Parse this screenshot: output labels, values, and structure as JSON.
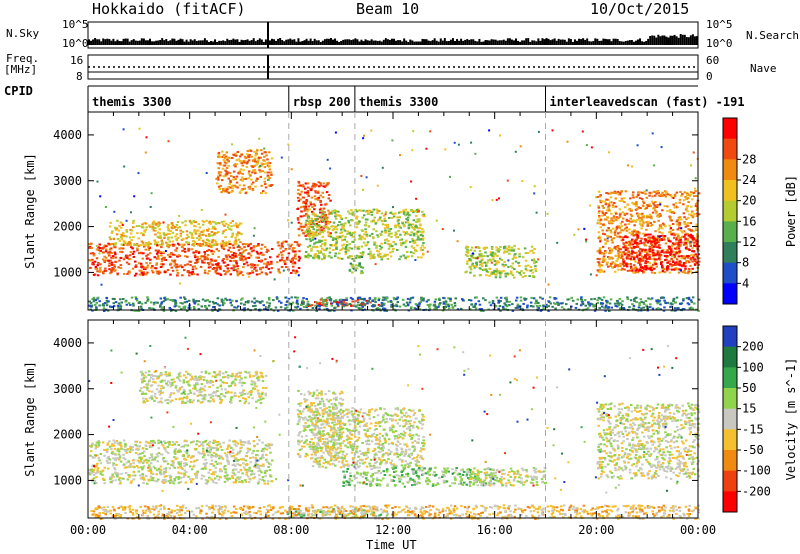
{
  "header": {
    "title": "Hokkaido (fitACF)",
    "beam": "Beam 10",
    "date": "10/Oct/2015"
  },
  "side_labels": {
    "nsky": "N.Sky",
    "nsearch": "N.Search",
    "freq": "Freq.",
    "freq_unit": "[MHz]",
    "cpid": "CPID",
    "nave": "Nave"
  },
  "small_axes": {
    "noise_left_top": "10^5",
    "noise_left_bottom": "10^0",
    "noise_right_top": "10^5",
    "noise_right_bottom": "10^0",
    "freq_left_top": "16",
    "freq_left_bottom": "8",
    "nave_right_top": "60",
    "nave_right_bottom": "0"
  },
  "cpid_segments": [
    {
      "label": "themis 3300",
      "start": 0,
      "end": 7.9
    },
    {
      "label": "rbsp 200",
      "start": 7.9,
      "end": 10.5
    },
    {
      "label": "themis 3300",
      "start": 10.5,
      "end": 18.0
    },
    {
      "label": "interleavedscan (fast) -191",
      "start": 18.0,
      "end": 24.0
    }
  ],
  "dashed_lines_ut": [
    7.9,
    10.5,
    18.0
  ],
  "x_axis": {
    "label": "Time UT",
    "ticks": [
      "00:00",
      "04:00",
      "08:00",
      "12:00",
      "16:00",
      "20:00",
      "00:00"
    ]
  },
  "chart_data": [
    {
      "type": "heatmap",
      "name": "power",
      "ylabel": "Slant Range [km]",
      "yticks": [
        "1000",
        "2000",
        "3000",
        "4000"
      ],
      "ylim": [
        180,
        4500
      ],
      "xlim": [
        0,
        24
      ],
      "colorbar_label": "Power [dB]",
      "colorbar_ticks": [
        "4",
        "8",
        "12",
        "16",
        "20",
        "24",
        "28"
      ],
      "colors": [
        "#0000ff",
        "#1f4fc8",
        "#2e7f5a",
        "#58b04a",
        "#b4cc30",
        "#f0c020",
        "#f08a10",
        "#f04a10",
        "#ff0000"
      ],
      "features": [
        {
          "t0": 0.0,
          "t1": 7.2,
          "r0": 950,
          "r1": 1650,
          "level": 7
        },
        {
          "t0": 0.8,
          "t1": 6.0,
          "r0": 1600,
          "r1": 2150,
          "level": 5
        },
        {
          "t0": 5.0,
          "t1": 7.2,
          "r0": 2750,
          "r1": 3700,
          "level": 6
        },
        {
          "t0": 7.4,
          "t1": 8.3,
          "r0": 1000,
          "r1": 1700,
          "level": 7
        },
        {
          "t0": 8.2,
          "t1": 9.5,
          "r0": 1800,
          "r1": 3000,
          "level": 7
        },
        {
          "t0": 8.5,
          "t1": 13.2,
          "r0": 1300,
          "r1": 2400,
          "level": 4
        },
        {
          "t0": 10.2,
          "t1": 10.8,
          "r0": 1000,
          "r1": 1400,
          "level": 3
        },
        {
          "t0": 14.8,
          "t1": 17.6,
          "r0": 900,
          "r1": 1600,
          "level": 4
        },
        {
          "t0": 20.0,
          "t1": 24.0,
          "r0": 1000,
          "r1": 2800,
          "level": 6
        },
        {
          "t0": 21.0,
          "t1": 24.0,
          "r0": 1050,
          "r1": 1850,
          "level": 8
        },
        {
          "t0": 8.3,
          "t1": 11.5,
          "r0": 280,
          "r1": 430,
          "level": 8
        },
        {
          "t0": 0.0,
          "t1": 24.0,
          "r0": 180,
          "r1": 480,
          "level": 2
        }
      ]
    },
    {
      "type": "heatmap",
      "name": "velocity",
      "ylabel": "Slant Range [km]",
      "yticks": [
        "1000",
        "2000",
        "3000",
        "4000"
      ],
      "ylim": [
        180,
        4500
      ],
      "xlim": [
        0,
        24
      ],
      "colorbar_label": "Velocity [m s^-1]",
      "colorbar_ticks": [
        "200",
        "100",
        "50",
        "15",
        "-15",
        "-50",
        "-100",
        "-200"
      ],
      "colors": [
        "#2040c0",
        "#1e7a3e",
        "#34a84a",
        "#8fd44a",
        "#c8c8c0",
        "#f4c030",
        "#f08a10",
        "#f04010",
        "#ff0000"
      ],
      "features": [
        {
          "t0": 0.0,
          "t1": 7.2,
          "r0": 950,
          "r1": 1900,
          "level": 4
        },
        {
          "t0": 2.0,
          "t1": 7.0,
          "r0": 2700,
          "r1": 3400,
          "level": 4
        },
        {
          "t0": 8.2,
          "t1": 10.0,
          "r0": 1500,
          "r1": 3000,
          "level": 4
        },
        {
          "t0": 8.8,
          "t1": 13.2,
          "r0": 1300,
          "r1": 2600,
          "level": 4
        },
        {
          "t0": 10.0,
          "t1": 16.0,
          "r0": 900,
          "r1": 1300,
          "level": 3
        },
        {
          "t0": 15.0,
          "t1": 18.0,
          "r0": 900,
          "r1": 1300,
          "level": 4
        },
        {
          "t0": 20.0,
          "t1": 24.0,
          "r0": 1050,
          "r1": 2700,
          "level": 4
        },
        {
          "t0": 7.8,
          "t1": 12.0,
          "r0": 220,
          "r1": 400,
          "level": 3
        },
        {
          "t0": 0.0,
          "t1": 24.0,
          "r0": 180,
          "r1": 480,
          "level": 5
        }
      ]
    }
  ]
}
